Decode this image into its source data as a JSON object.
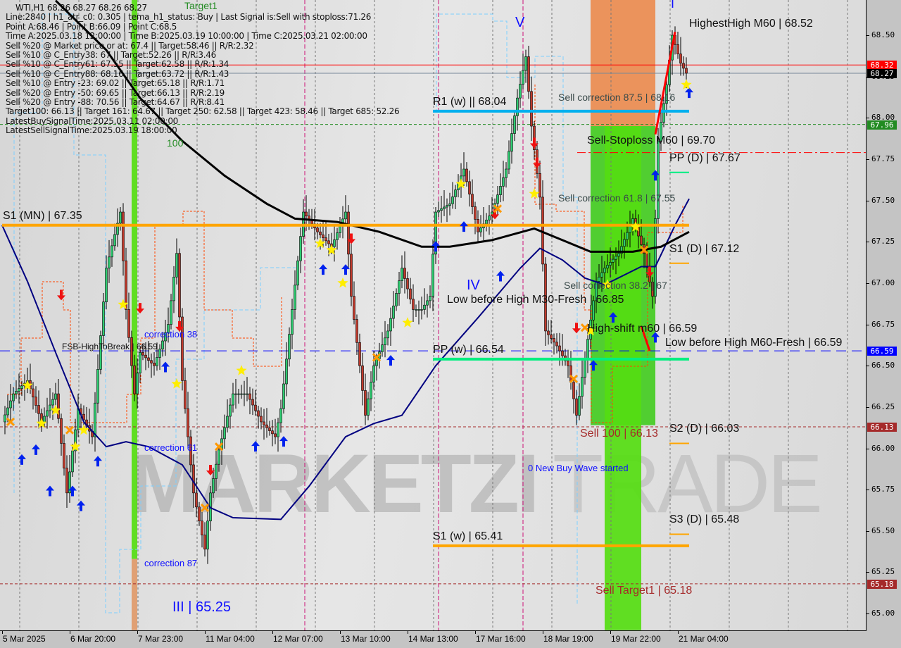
{
  "header": {
    "symbol_line": "WTI,H1  68.26 68.27 68.26 68.27",
    "info_lines": [
      "Line:2840 | h1_atr_c0: 0.305 | tema_h1_status: Buy | Last Signal is:Sell with stoploss:71.26",
      "Point A:68.46 | Point B:66.09 | Point C:68.5",
      "Time A:2025.03.18 12:00:00 | Time B:2025.03.19 10:00:00 | Time C:2025.03.21 02:00:00",
      "Sell %20 @ Market price or at: 67.4 || Target:58.46 || R/R:2.32",
      "Sell %10 @ C_Entry38: 67 || Target:52.26 || R/R:3.46",
      "Sell %10 @ C_Entry61: 67.55 || Target:62.58 || R/R:1.34",
      "Sell %10 @ C_Entry88: 68.16 || Target:63.72 || R/R:1.43",
      "Sell %10 @ Entry -23: 69.02 || Target:65.18 || R/R:1.71",
      "Sell %20 @ Entry -50: 69.65 || Target:66.13 || R/R:2.19",
      "Sell %20 @ Entry -88: 70.56 || Target:64.67 || R/R:8.41",
      "Target100: 66.13 || Target 161: 64.67 || Target 250: 62.58 || Target 423: 58.46 || Target 685: 52.26",
      "LatestBuySignalTime:2025.03.11 02:00:00",
      "LatestSellSignalTime:2025.03.19 18:00:00"
    ]
  },
  "watermark": {
    "logo_left": "MARKETZI",
    "logo_right": "TRADE"
  },
  "chart_data": {
    "type": "candlestick",
    "symbol": "WTI",
    "timeframe": "H1",
    "ylim": [
      64.9,
      68.7
    ],
    "y_ticks": [
      "65.00",
      "65.25",
      "65.50",
      "65.75",
      "66.00",
      "66.25",
      "66.50",
      "66.75",
      "67.00",
      "67.25",
      "67.50",
      "67.75",
      "68.00",
      "68.25",
      "68.50"
    ],
    "x_ticks": [
      {
        "bar": 0,
        "label": "5 Mar 2025"
      },
      {
        "bar": 24,
        "label": "6 Mar 20:00"
      },
      {
        "bar": 48,
        "label": "7 Mar 23:00"
      },
      {
        "bar": 72,
        "label": "11 Mar 04:00"
      },
      {
        "bar": 96,
        "label": "12 Mar 07:00"
      },
      {
        "bar": 120,
        "label": "13 Mar 10:00"
      },
      {
        "bar": 144,
        "label": "14 Mar 13:00"
      },
      {
        "bar": 168,
        "label": "17 Mar 16:00"
      },
      {
        "bar": 192,
        "label": "18 Mar 19:00"
      },
      {
        "bar": 216,
        "label": "19 Mar 22:00"
      },
      {
        "bar": 240,
        "label": "21 Mar 04:00"
      }
    ],
    "close_path": [
      [
        0,
        66.16
      ],
      [
        4,
        66.33
      ],
      [
        9,
        66.41
      ],
      [
        14,
        66.16
      ],
      [
        19,
        66.33
      ],
      [
        23,
        65.73
      ],
      [
        27,
        66.24
      ],
      [
        32,
        66.07
      ],
      [
        37,
        67.09
      ],
      [
        42,
        67.43
      ],
      [
        44,
        66.84
      ],
      [
        47,
        66.33
      ],
      [
        49,
        66.58
      ],
      [
        54,
        66.5
      ],
      [
        59,
        66.75
      ],
      [
        62,
        67.18
      ],
      [
        64,
        66.41
      ],
      [
        68,
        65.73
      ],
      [
        72,
        65.39
      ],
      [
        74,
        65.73
      ],
      [
        77,
        65.99
      ],
      [
        82,
        66.33
      ],
      [
        87,
        66.33
      ],
      [
        92,
        66.16
      ],
      [
        97,
        66.07
      ],
      [
        99,
        66.24
      ],
      [
        103,
        66.84
      ],
      [
        107,
        67.43
      ],
      [
        112,
        67.31
      ],
      [
        117,
        67.22
      ],
      [
        122,
        67.43
      ],
      [
        124,
        66.92
      ],
      [
        127,
        66.5
      ],
      [
        129,
        66.2
      ],
      [
        132,
        66.5
      ],
      [
        137,
        66.71
      ],
      [
        142,
        67.09
      ],
      [
        146,
        66.84
      ],
      [
        149,
        66.84
      ],
      [
        152,
        66.92
      ],
      [
        154,
        67.43
      ],
      [
        159,
        67.48
      ],
      [
        164,
        67.69
      ],
      [
        169,
        67.31
      ],
      [
        174,
        67.43
      ],
      [
        179,
        67.69
      ],
      [
        183,
        68.12
      ],
      [
        186,
        68.37
      ],
      [
        188,
        67.95
      ],
      [
        191,
        67.52
      ],
      [
        193,
        66.71
      ],
      [
        197,
        66.62
      ],
      [
        201,
        66.5
      ],
      [
        204,
        66.2
      ],
      [
        208,
        66.66
      ],
      [
        211,
        67.01
      ],
      [
        214,
        67.09
      ],
      [
        219,
        67.18
      ],
      [
        224,
        67.39
      ],
      [
        228,
        67.18
      ],
      [
        231,
        66.92
      ],
      [
        233,
        67.86
      ],
      [
        236,
        68.2
      ],
      [
        238,
        68.5
      ],
      [
        241,
        68.33
      ],
      [
        243,
        68.27
      ]
    ],
    "ma_slow": [
      [
        19,
        68.71
      ],
      [
        37,
        68.41
      ],
      [
        49,
        68.12
      ],
      [
        64,
        67.86
      ],
      [
        79,
        67.65
      ],
      [
        94,
        67.48
      ],
      [
        104,
        67.39
      ],
      [
        119,
        67.37
      ],
      [
        134,
        67.31
      ],
      [
        149,
        67.22
      ],
      [
        159,
        67.22
      ],
      [
        174,
        67.26
      ],
      [
        189,
        67.33
      ],
      [
        199,
        67.26
      ],
      [
        209,
        67.19
      ],
      [
        224,
        67.19
      ],
      [
        234,
        67.22
      ],
      [
        244,
        67.31
      ]
    ],
    "ma_fast": [
      [
        0,
        67.35
      ],
      [
        9,
        67.01
      ],
      [
        19,
        66.58
      ],
      [
        29,
        66.16
      ],
      [
        37,
        66.01
      ],
      [
        44,
        66.04
      ],
      [
        52,
        66.01
      ],
      [
        64,
        65.9
      ],
      [
        74,
        65.64
      ],
      [
        82,
        65.58
      ],
      [
        99,
        65.57
      ],
      [
        109,
        65.77
      ],
      [
        122,
        66.07
      ],
      [
        132,
        66.15
      ],
      [
        142,
        66.2
      ],
      [
        154,
        66.5
      ],
      [
        169,
        66.79
      ],
      [
        184,
        67.09
      ],
      [
        191,
        67.21
      ],
      [
        199,
        67.14
      ],
      [
        207,
        67.03
      ],
      [
        214,
        66.99
      ],
      [
        227,
        67.1
      ],
      [
        232,
        67.1
      ],
      [
        239,
        67.35
      ],
      [
        244,
        67.51
      ]
    ],
    "levels": [
      {
        "label": "S1 (MN) | 67.35",
        "price": 67.35,
        "color": "#ffa500",
        "style": "thick",
        "from_bar": 0,
        "to_bar": 244
      },
      {
        "label": "R1 (w) || 68.04",
        "price": 68.04,
        "color": "#00b0ee",
        "style": "thick",
        "from_bar": 153,
        "to_bar": 244
      },
      {
        "label": "PP (w) | 66.54",
        "price": 66.54,
        "color": "#00ee80",
        "style": "thick",
        "from_bar": 153,
        "to_bar": 244
      },
      {
        "label": "S1 (w) | 65.41",
        "price": 65.41,
        "color": "#ffa500",
        "style": "thick",
        "from_bar": 153,
        "to_bar": 244
      },
      {
        "label": "PP (D) | 67.67",
        "price": 67.67,
        "color": "#00ee80",
        "style": "short",
        "from_bar": 237,
        "to_bar": 244
      },
      {
        "label": "S1 (D) | 67.12",
        "price": 67.12,
        "color": "#ffa500",
        "style": "short",
        "from_bar": 237,
        "to_bar": 244
      },
      {
        "label": "S2 (D) | 66.03",
        "price": 66.03,
        "color": "#ffa500",
        "style": "short",
        "from_bar": 237,
        "to_bar": 244
      },
      {
        "label": "S3 (D) | 65.48",
        "price": 65.48,
        "color": "#ffa500",
        "style": "short",
        "from_bar": 237,
        "to_bar": 244
      }
    ],
    "price_lines": [
      {
        "price": 68.32,
        "color": "#ff0000",
        "style": "solid",
        "tag": "68.32"
      },
      {
        "price": 68.27,
        "color": "#778899",
        "style": "solid",
        "tag": "68.27",
        "tag_color": "#000000"
      },
      {
        "price": 67.96,
        "color": "#228b22",
        "style": "dash",
        "tag": "67.96"
      },
      {
        "price": 66.59,
        "color": "#0000ff",
        "style": "longdash",
        "tag": "66.59"
      },
      {
        "price": 66.13,
        "color": "#a52a2a",
        "style": "dash",
        "tag": "66.13"
      },
      {
        "price": 65.18,
        "color": "#a52a2a",
        "style": "dash",
        "tag": "65.18"
      },
      {
        "price": 67.79,
        "color": "#ff0000",
        "style": "dashdot",
        "tag": ""
      }
    ],
    "annotations": {
      "highest_high": "HighestHigh   M60 | 68.52",
      "sell_corr_875": "Sell correction 87.5 | 68.16",
      "sell_corr_618": "Sell correction 61.8 | 67.55",
      "sell_corr_382": "Sell correction 38.2 | 67",
      "sell_stoploss": "Sell-Stoploss M60 | 69.70",
      "low_before_high_m30": "Low before High   M30-Fresh | 66.85",
      "high_shift": "High-shift m60 | 66.59",
      "low_before_high_m60": "Low before High   M60-Fresh | 66.59",
      "fsb": "FSB-HighToBreak | 66.59",
      "correction_38": "correction 38",
      "correction_61": "correction 61",
      "correction_87": "correction 87",
      "wave_iii": "III | 65.25",
      "wave_iv": "IV",
      "wave_v": "V",
      "wave_i": "I",
      "sell_100": "Sell 100 | 66.13",
      "sell_target1": "Sell Target1 | 65.18",
      "new_buy_wave": "0 New Buy Wave started",
      "label_100": "100",
      "target1": "Target1"
    },
    "markers": {
      "buy_arrows": [
        [
          7,
          65.93
        ],
        [
          12,
          65.99
        ],
        [
          17,
          65.74
        ],
        [
          25,
          65.74
        ],
        [
          28,
          65.65
        ],
        [
          34,
          65.92
        ],
        [
          58,
          66.49
        ],
        [
          90,
          66.01
        ],
        [
          100,
          66.04
        ],
        [
          114,
          67.08
        ],
        [
          122,
          67.08
        ],
        [
          138,
          66.53
        ],
        [
          154,
          67.22
        ],
        [
          164,
          67.34
        ],
        [
          177,
          67.04
        ],
        [
          210,
          66.5
        ],
        [
          217,
          66.79
        ],
        [
          232,
          67.65
        ],
        [
          232,
          66.67
        ],
        [
          244,
          68.15
        ]
      ],
      "sell_arrows": [
        [
          21,
          66.93
        ],
        [
          49,
          66.85
        ],
        [
          63,
          66.74
        ],
        [
          74,
          65.87
        ],
        [
          124,
          67.27
        ],
        [
          175,
          67.42
        ],
        [
          189,
          67.85
        ],
        [
          190,
          67.73
        ],
        [
          204,
          66.73
        ],
        [
          230,
          67.07
        ]
      ],
      "stars": [
        [
          9,
          66.38
        ],
        [
          14,
          66.15
        ],
        [
          19,
          66.23
        ],
        [
          26,
          66.01
        ],
        [
          29,
          66.11
        ],
        [
          43,
          66.87
        ],
        [
          62,
          66.39
        ],
        [
          85,
          66.47
        ],
        [
          113,
          67.24
        ],
        [
          117,
          67.2
        ],
        [
          121,
          67.0
        ],
        [
          144,
          66.76
        ],
        [
          163,
          67.6
        ],
        [
          189,
          67.54
        ],
        [
          209,
          66.71
        ],
        [
          215,
          66.99
        ],
        [
          225,
          67.34
        ],
        [
          243,
          68.2
        ]
      ],
      "crosses": [
        [
          3,
          66.16
        ],
        [
          24,
          66.11
        ],
        [
          72,
          65.64
        ],
        [
          77,
          66.01
        ],
        [
          133,
          66.55
        ],
        [
          176,
          67.45
        ],
        [
          203,
          66.42
        ],
        [
          207,
          66.73
        ],
        [
          228,
          67.2
        ]
      ]
    },
    "trend_segments": [
      [
        [
          232,
          67.9
        ],
        [
          239,
          68.52
        ]
      ],
      [
        [
          227,
          66.74
        ],
        [
          230,
          66.59
        ]
      ]
    ],
    "zones": [
      {
        "color": "#ec8c50",
        "from_bar": 209,
        "to_bar": 232,
        "top": 68.75,
        "bottom": 67.95
      },
      {
        "color": "#44cc22",
        "from_bar": 209,
        "to_bar": 232,
        "top": 67.95,
        "bottom": 66.14
      },
      {
        "color": "#55dd11",
        "from_bar": 214,
        "to_bar": 227,
        "top": 67.95,
        "bottom": 64.9
      },
      {
        "color": "#55dd11",
        "from_bar": 46,
        "to_bar": 48,
        "top": 68.75,
        "bottom": 65.33
      },
      {
        "color": "#e09a6a",
        "from_bar": 46,
        "to_bar": 48,
        "top": 65.33,
        "bottom": 64.9
      }
    ],
    "colors": {
      "bull": "#2ecc71",
      "bear": "#c0392b",
      "ma_slow": "#000000",
      "ma_fast": "#000080",
      "buy": "#0022ee",
      "sell": "#ee1111",
      "star": "#ffee00",
      "cross": "#ff9900"
    }
  }
}
